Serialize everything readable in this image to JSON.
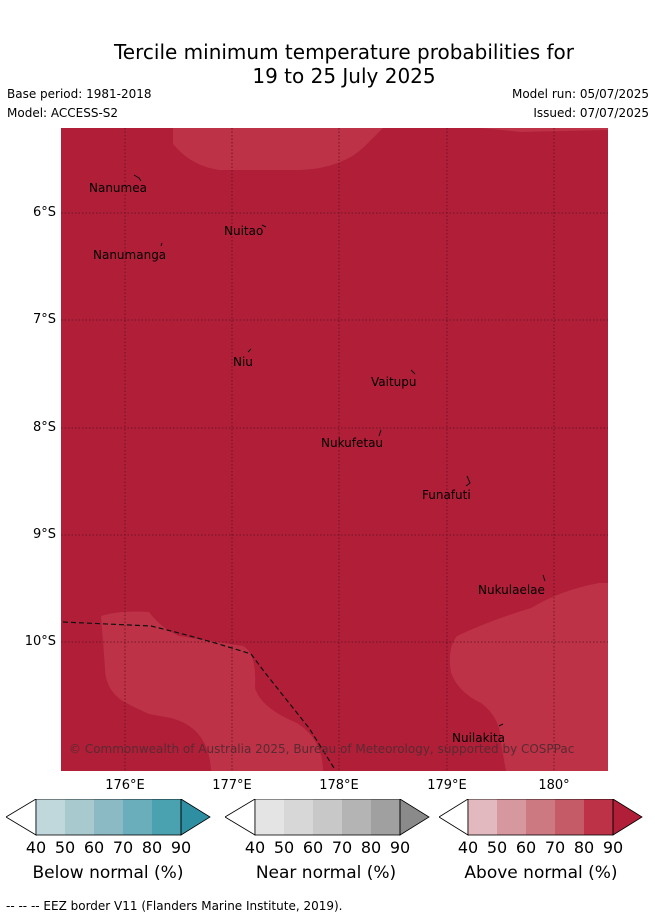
{
  "title_line1": "Tercile minimum temperature probabilities for",
  "title_line2": "19 to 25 July 2025",
  "base_period": "Base period: 1981-2018",
  "model": "Model: ACCESS-S2",
  "model_run": "Model run: 05/07/2025",
  "issued": "Issued: 07/07/2025",
  "lat_labels": [
    "6°S",
    "7°S",
    "8°S",
    "9°S",
    "10°S"
  ],
  "lon_labels": [
    "176°E",
    "177°E",
    "178°E",
    "179°E",
    "180°"
  ],
  "places": {
    "nanumea": "Nanumea",
    "nuitao": "Nuitao",
    "nanumanga": "Nanumanga",
    "niu": "Niu",
    "vaitupu": "Vaitupu",
    "nukufetau": "Nukufetau",
    "funafuti": "Funafuti",
    "nukulaelae": "Nukulaelae",
    "nuilakita": "Nuilakita"
  },
  "copyright": "© Commonwealth of Australia 2025, Bureau of Meteorology, supported by COSPPac",
  "colorbars": [
    {
      "label": "Below normal (%)",
      "ticks": [
        "40",
        "50",
        "60",
        "70",
        "80",
        "90"
      ],
      "colors": [
        "#c0d7dc",
        "#a8cacf",
        "#8bbac4",
        "#6aadbb",
        "#4aa2b1",
        "#2e8fa3"
      ]
    },
    {
      "label": "Near normal (%)",
      "ticks": [
        "40",
        "50",
        "60",
        "70",
        "80",
        "90"
      ],
      "colors": [
        "#e4e4e4",
        "#d7d7d7",
        "#c8c8c8",
        "#b4b4b4",
        "#a0a0a0",
        "#8a8a8a"
      ]
    },
    {
      "label": "Above normal (%)",
      "ticks": [
        "40",
        "50",
        "60",
        "70",
        "80",
        "90"
      ],
      "colors": [
        "#e2b9be",
        "#d7979f",
        "#cc7982",
        "#c45b67",
        "#bd3246",
        "#b01e38"
      ]
    }
  ],
  "map_colors": {
    "above_90": "#b01e38",
    "above_80": "#bd3246"
  },
  "footnote": "-- -- -- EEZ border V11 (Flanders Marine Institute, 2019)."
}
